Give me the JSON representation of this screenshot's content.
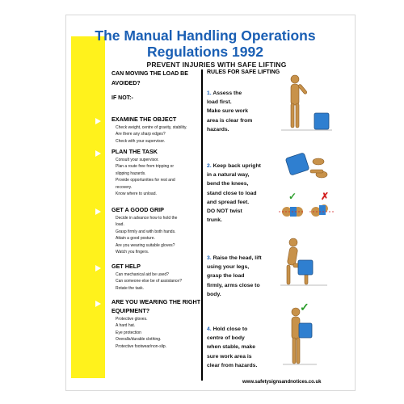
{
  "title_line1": "The Manual Handling Operations",
  "title_line2": "Regulations 1992",
  "subtitle": "PREVENT INJURIES WITH SAFE LIFTING",
  "left": {
    "question_line1": "CAN MOVING THE LOAD BE",
    "question_line2": "AVOIDED?",
    "if_not": "IF NOT:-",
    "sections": [
      {
        "heading": "EXAMINE THE OBJECT",
        "items": [
          "Check weight, centre of gravity, stability.",
          "Are there any sharp edges?",
          "Check with your supervisor."
        ]
      },
      {
        "heading": "PLAN THE TASK",
        "items": [
          "Consult your supervisor.",
          "Plan a route free from tripping or",
          "slipping hazards.",
          "Provide opportunities for rest and",
          "recovery.",
          "Know where to unload."
        ]
      },
      {
        "heading": "GET A GOOD GRIP",
        "items": [
          "Decide in advance how to hold the",
          "load.",
          "Grasp firmly and with both hands.",
          "Attain a good posture.",
          "Are you wearing suitable gloves?",
          "Watch you fingers."
        ]
      },
      {
        "heading": "GET HELP",
        "items": [
          "Can mechanical aid be used?",
          "Can someone else be of assistance?",
          "Rotate the task."
        ]
      },
      {
        "heading_line1": "ARE YOU WEARING THE RIGHT",
        "heading_line2": "EQUIPMENT?",
        "items": [
          "Protective gloves.",
          "A hard hat.",
          "Eye protection",
          "Overalls/durable clothing.",
          "Protective footwear/non-slip."
        ]
      }
    ]
  },
  "right": {
    "heading": "RULES FOR SAFE LIFTING",
    "rules": [
      {
        "num": "1.",
        "lines": [
          "Assess the",
          "load first.",
          "Make sure work",
          "area is clear from",
          "hazards."
        ]
      },
      {
        "num": "2.",
        "lines": [
          "Keep back upright",
          "in a natural way,",
          "bend the knees,",
          "stand close to load",
          "and spread feet.",
          "DO NOT twist",
          "trunk."
        ]
      },
      {
        "num": "3.",
        "lines": [
          "Raise the head, lift",
          "using your legs,",
          "grasp the load",
          "firmly, arms close to",
          "body."
        ]
      },
      {
        "num": "4.",
        "lines": [
          "Hold close to",
          "centre of body",
          "when stable, make",
          "sure work area is",
          "clear from hazards."
        ]
      }
    ]
  },
  "check_mark": "✓",
  "cross_mark": "✗",
  "website": "www.safetysignsandnotices.co.uk",
  "colors": {
    "title_blue": "#1a5fb4",
    "yellow": "#fff21c",
    "box_blue": "#2f7fd0",
    "figure_tan": "#c8924a"
  }
}
